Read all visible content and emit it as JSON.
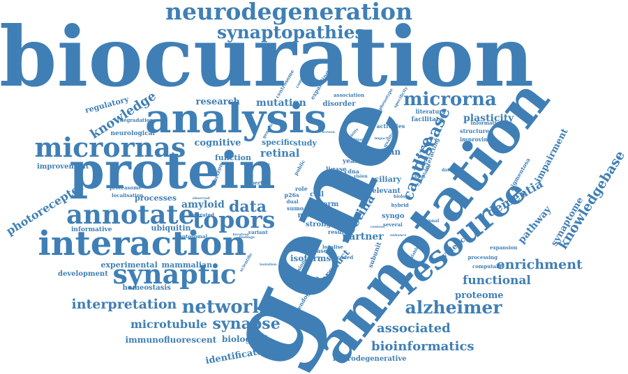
{
  "color": "#3f7fb5",
  "words": [
    "biocuration",
    "gene",
    "annotation",
    "protein",
    "analysis",
    "interaction",
    "neurodegeneration",
    "synaptopathies",
    "resource",
    "micrornas",
    "microrna",
    "annotate",
    "synaptic",
    "topors",
    "network",
    "alzheimer",
    "capture",
    "disease",
    "data",
    "knowledge",
    "knowledgebase",
    "dementia",
    "enrichment",
    "functional",
    "associated",
    "bioinformatics",
    "synapse",
    "interpretation",
    "microtubule",
    "photoreceptor",
    "retina",
    "impairment",
    "pathway",
    "synaptome",
    "amyloid",
    "mutation",
    "research",
    "retinal",
    "cognitive",
    "plasticity",
    "identification",
    "immunofluorescent",
    "proteome",
    "biological",
    "isoforms",
    "product",
    "evidence",
    "regulatory",
    "partner",
    "function",
    "processes",
    "ubiquitin",
    "experimental",
    "mammalian",
    "development",
    "homeostasis",
    "neurodegenerative",
    "improvement",
    "neurological",
    "human",
    "study",
    "specific",
    "ciliary",
    "relevant",
    "syngo",
    "more",
    "strong",
    "term",
    "cell",
    "informative",
    "proteasome",
    "degradation",
    "expert",
    "curated",
    "autosomal",
    "facilitate",
    "literature",
    "improving",
    "information",
    "structure",
    "disorder",
    "association",
    "expanding",
    "pigmentosa",
    "activities",
    "interacting",
    "dataset",
    "computable",
    "expansion",
    "centrosome",
    "localisation",
    "subunit",
    "yeast",
    "ligase",
    "cdna",
    "sumo",
    "dual",
    "p26s",
    "role",
    "variant",
    "result",
    "endogenous",
    "expression",
    "scientific",
    "isolation",
    "encoded",
    "localise",
    "hybrid",
    "cone",
    "based",
    "several",
    "neuronal",
    "biology",
    "scalable",
    "cytoplasm",
    "database",
    "complexes",
    "phenotype",
    "specificity",
    "addition",
    "reliability",
    "screen",
    "public",
    "bait",
    "vision",
    "context",
    "enhance",
    "processing",
    "involved",
    "analyse",
    "horizon",
    "observed",
    "quality",
    "impact",
    "findings",
    "system",
    "genetic"
  ]
}
